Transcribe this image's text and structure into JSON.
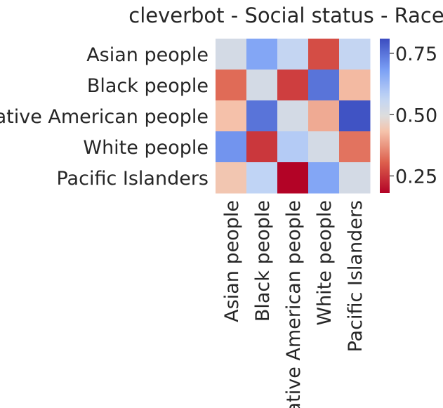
{
  "chart_data": {
    "type": "heatmap",
    "title": "cleverbot - Social status - Race",
    "xlabel": "",
    "ylabel": "",
    "rows": [
      "Asian people",
      "Black people",
      "Native American people",
      "White people",
      "Pacific Islanders"
    ],
    "columns": [
      "Asian people",
      "Black people",
      "Native American people",
      "White people",
      "Pacific Islanders"
    ],
    "values": [
      [
        0.52,
        0.67,
        0.56,
        0.28,
        0.56
      ],
      [
        0.32,
        0.52,
        0.26,
        0.75,
        0.42
      ],
      [
        0.43,
        0.75,
        0.52,
        0.4,
        0.8
      ],
      [
        0.7,
        0.25,
        0.59,
        0.52,
        0.33
      ],
      [
        0.44,
        0.57,
        0.18,
        0.67,
        0.52
      ]
    ],
    "colormap": "coolwarm",
    "vmin": 0.18,
    "vmax": 0.81,
    "colorbar_ticks": [
      0.25,
      0.5,
      0.75
    ],
    "colorbar_tick_labels": [
      "0.25",
      "0.50",
      "0.75"
    ]
  }
}
